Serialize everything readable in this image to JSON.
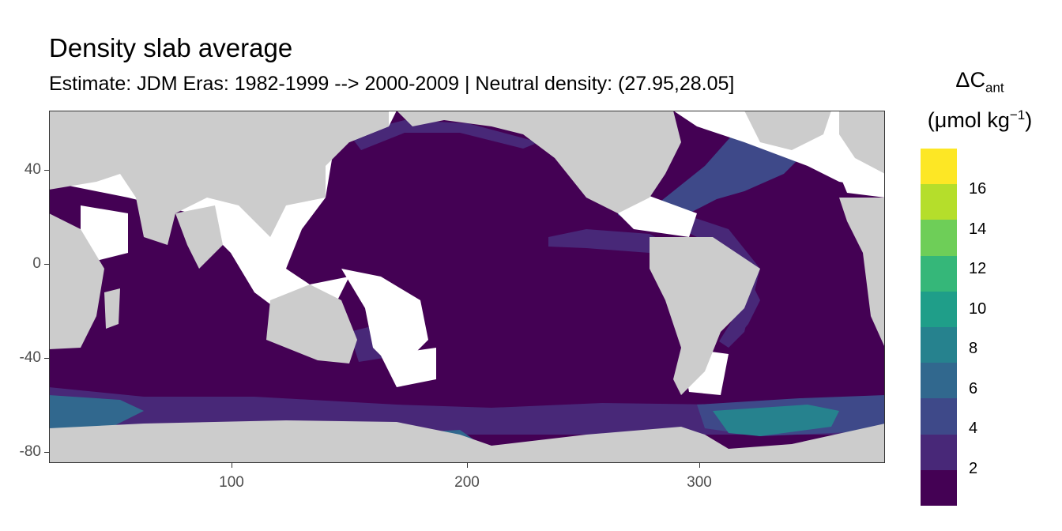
{
  "title": "Density slab average",
  "subtitle": "Estimate: JDM Eras: 1982-1999 --> 2000-2009 | Neutral density: (27.95,28.05]",
  "map": {
    "projection": "equirectangular",
    "x_range": [
      20,
      380
    ],
    "y_range": [
      -85,
      65
    ],
    "x_ticks": [
      "100",
      "200",
      "300"
    ],
    "y_ticks": [
      "40",
      "0",
      "-40",
      "-80"
    ],
    "land_color": "#cccccc",
    "no_data_color": "#ffffff",
    "ocean_base_color": "#440154"
  },
  "legend": {
    "title_main": "ΔC",
    "title_sub": "ant",
    "unit_open": "(μmol kg",
    "unit_sup": "−1",
    "unit_close": ")",
    "labels": [
      "16",
      "14",
      "12",
      "10",
      "8",
      "6",
      "4",
      "2"
    ],
    "bins": [
      {
        "range": "16-18",
        "color": "#fde725"
      },
      {
        "range": "14-16",
        "color": "#b5de2b"
      },
      {
        "range": "12-14",
        "color": "#6ece58"
      },
      {
        "range": "10-12",
        "color": "#35b779"
      },
      {
        "range": "8-10",
        "color": "#1f9e89"
      },
      {
        "range": "6-8",
        "color": "#26828e"
      },
      {
        "range": "4-6",
        "color": "#31688e"
      },
      {
        "range": "2-4",
        "color": "#3e4989"
      },
      {
        "range": "0-2",
        "color": "#482878"
      },
      {
        "range": "<0",
        "color": "#440154"
      }
    ]
  }
}
